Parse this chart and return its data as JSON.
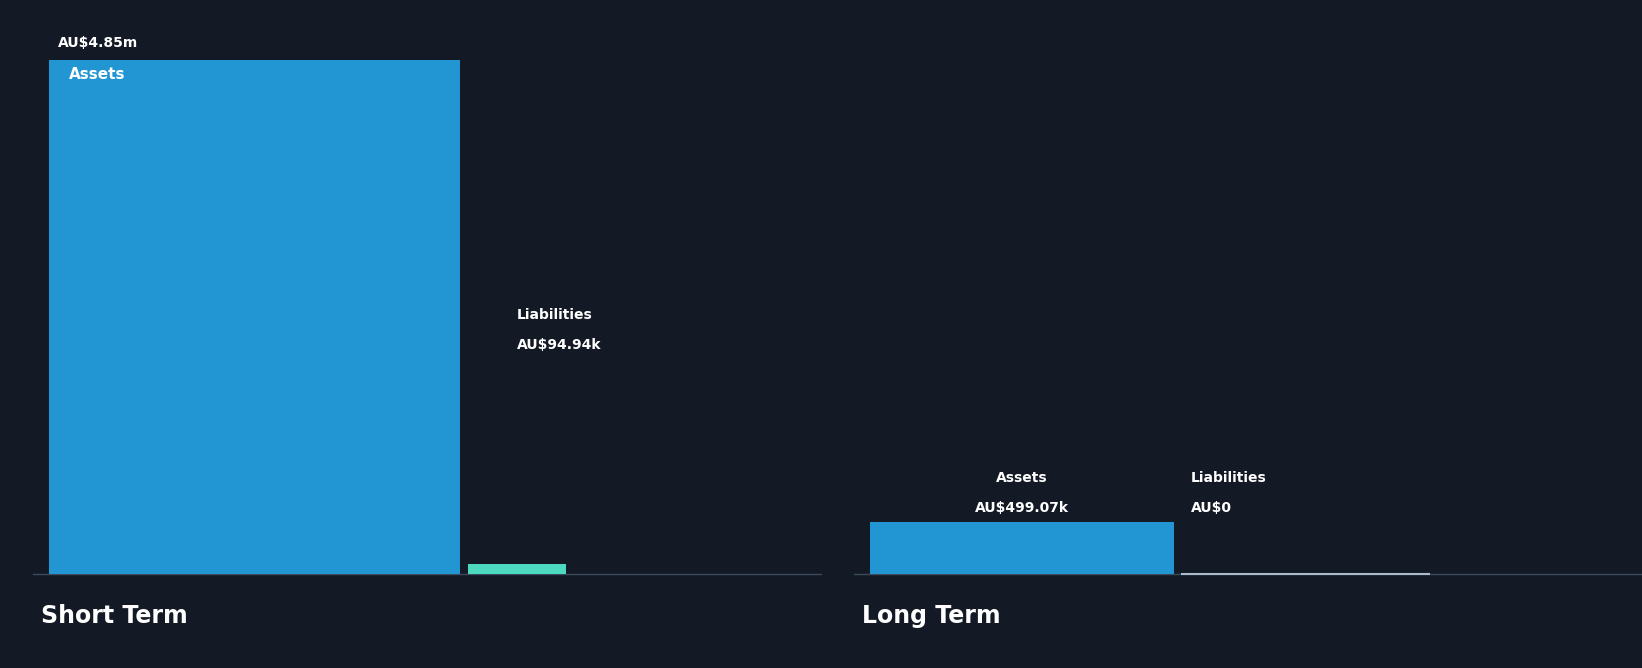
{
  "background_color": "#131a25",
  "text_color": "#ffffff",
  "blue_color": "#2196d3",
  "teal_color": "#4dd9c0",
  "separator_color": "#3a4a5a",
  "short_term": {
    "assets_value": 4850000,
    "assets_label": "AU$4.85m",
    "assets_text": "Assets",
    "liabilities_value": 94940,
    "liabilities_label": "AU$94.94k",
    "liabilities_text": "Liabilities",
    "section_title": "Short Term"
  },
  "long_term": {
    "assets_value": 499070,
    "assets_label": "AU$499.07k",
    "assets_text": "Assets",
    "liabilities_value": 0,
    "liabilities_label": "AU$0",
    "liabilities_text": "Liabilities",
    "section_title": "Long Term"
  },
  "fig_width": 16.42,
  "fig_height": 6.68,
  "dpi": 100
}
